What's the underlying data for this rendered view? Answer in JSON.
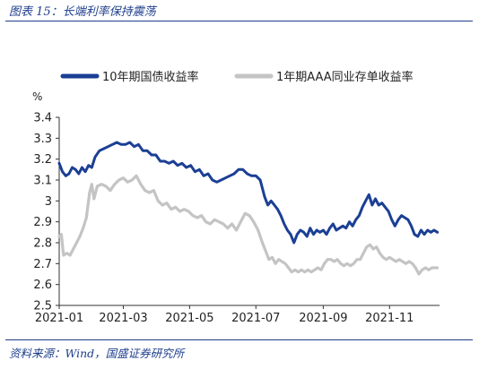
{
  "figure": {
    "title": "图表 15：长端利率保持震荡",
    "source": "资料来源：Wind，国盛证券研究所"
  },
  "chart_data": {
    "type": "line",
    "ylabel": "%",
    "ylim": [
      2.5,
      3.4
    ],
    "yticks": [
      "2.5",
      "2.6",
      "2.7",
      "2.8",
      "2.9",
      "3",
      "3.1",
      "3.2",
      "3.3",
      "3.4"
    ],
    "xlim": [
      "2021-01-01",
      "2021-12-17"
    ],
    "xticks": [
      "2021-01",
      "2021-03",
      "2021-05",
      "2021-07",
      "2021-09",
      "2021-11"
    ],
    "grid": false,
    "legend_position": "top",
    "series": [
      {
        "name": "10年期国债收益率",
        "color": "#1b3f94",
        "points": [
          [
            "2021-01-01",
            3.18
          ],
          [
            "2021-01-04",
            3.14
          ],
          [
            "2021-01-07",
            3.12
          ],
          [
            "2021-01-10",
            3.13
          ],
          [
            "2021-01-13",
            3.16
          ],
          [
            "2021-01-16",
            3.15
          ],
          [
            "2021-01-19",
            3.13
          ],
          [
            "2021-01-22",
            3.16
          ],
          [
            "2021-01-25",
            3.14
          ],
          [
            "2021-01-28",
            3.17
          ],
          [
            "2021-01-31",
            3.16
          ],
          [
            "2021-02-03",
            3.21
          ],
          [
            "2021-02-07",
            3.24
          ],
          [
            "2021-02-11",
            3.25
          ],
          [
            "2021-02-15",
            3.26
          ],
          [
            "2021-02-19",
            3.27
          ],
          [
            "2021-02-23",
            3.28
          ],
          [
            "2021-02-27",
            3.27
          ],
          [
            "2021-03-03",
            3.27
          ],
          [
            "2021-03-07",
            3.28
          ],
          [
            "2021-03-11",
            3.26
          ],
          [
            "2021-03-15",
            3.27
          ],
          [
            "2021-03-19",
            3.24
          ],
          [
            "2021-03-23",
            3.24
          ],
          [
            "2021-03-27",
            3.22
          ],
          [
            "2021-03-31",
            3.22
          ],
          [
            "2021-04-04",
            3.19
          ],
          [
            "2021-04-08",
            3.19
          ],
          [
            "2021-04-12",
            3.18
          ],
          [
            "2021-04-16",
            3.19
          ],
          [
            "2021-04-20",
            3.17
          ],
          [
            "2021-04-24",
            3.18
          ],
          [
            "2021-04-28",
            3.16
          ],
          [
            "2021-05-02",
            3.17
          ],
          [
            "2021-05-06",
            3.14
          ],
          [
            "2021-05-10",
            3.15
          ],
          [
            "2021-05-14",
            3.12
          ],
          [
            "2021-05-18",
            3.13
          ],
          [
            "2021-05-22",
            3.1
          ],
          [
            "2021-05-26",
            3.09
          ],
          [
            "2021-05-30",
            3.1
          ],
          [
            "2021-06-03",
            3.11
          ],
          [
            "2021-06-07",
            3.12
          ],
          [
            "2021-06-11",
            3.13
          ],
          [
            "2021-06-15",
            3.15
          ],
          [
            "2021-06-19",
            3.15
          ],
          [
            "2021-06-23",
            3.13
          ],
          [
            "2021-06-27",
            3.12
          ],
          [
            "2021-07-01",
            3.12
          ],
          [
            "2021-07-05",
            3.1
          ],
          [
            "2021-07-09",
            3.02
          ],
          [
            "2021-07-12",
            2.98
          ],
          [
            "2021-07-15",
            3.0
          ],
          [
            "2021-07-18",
            2.98
          ],
          [
            "2021-07-21",
            2.96
          ],
          [
            "2021-07-24",
            2.93
          ],
          [
            "2021-07-27",
            2.89
          ],
          [
            "2021-07-30",
            2.86
          ],
          [
            "2021-08-02",
            2.84
          ],
          [
            "2021-08-05",
            2.8
          ],
          [
            "2021-08-08",
            2.84
          ],
          [
            "2021-08-11",
            2.86
          ],
          [
            "2021-08-14",
            2.85
          ],
          [
            "2021-08-17",
            2.83
          ],
          [
            "2021-08-20",
            2.87
          ],
          [
            "2021-08-23",
            2.84
          ],
          [
            "2021-08-26",
            2.86
          ],
          [
            "2021-08-29",
            2.85
          ],
          [
            "2021-09-01",
            2.86
          ],
          [
            "2021-09-04",
            2.84
          ],
          [
            "2021-09-07",
            2.87
          ],
          [
            "2021-09-10",
            2.89
          ],
          [
            "2021-09-13",
            2.86
          ],
          [
            "2021-09-16",
            2.87
          ],
          [
            "2021-09-19",
            2.88
          ],
          [
            "2021-09-22",
            2.87
          ],
          [
            "2021-09-25",
            2.9
          ],
          [
            "2021-09-28",
            2.88
          ],
          [
            "2021-10-01",
            2.91
          ],
          [
            "2021-10-04",
            2.93
          ],
          [
            "2021-10-07",
            2.97
          ],
          [
            "2021-10-10",
            3.0
          ],
          [
            "2021-10-13",
            3.03
          ],
          [
            "2021-10-16",
            2.98
          ],
          [
            "2021-10-19",
            3.01
          ],
          [
            "2021-10-22",
            2.98
          ],
          [
            "2021-10-25",
            2.99
          ],
          [
            "2021-10-28",
            2.97
          ],
          [
            "2021-10-31",
            2.95
          ],
          [
            "2021-11-03",
            2.91
          ],
          [
            "2021-11-06",
            2.88
          ],
          [
            "2021-11-09",
            2.91
          ],
          [
            "2021-11-12",
            2.93
          ],
          [
            "2021-11-15",
            2.92
          ],
          [
            "2021-11-18",
            2.91
          ],
          [
            "2021-11-21",
            2.88
          ],
          [
            "2021-11-24",
            2.84
          ],
          [
            "2021-11-27",
            2.83
          ],
          [
            "2021-11-30",
            2.86
          ],
          [
            "2021-12-03",
            2.84
          ],
          [
            "2021-12-06",
            2.86
          ],
          [
            "2021-12-09",
            2.85
          ],
          [
            "2021-12-12",
            2.86
          ],
          [
            "2021-12-15",
            2.85
          ]
        ]
      },
      {
        "name": "1年期AAA同业存单收益率",
        "color": "#c4c4c4",
        "points": [
          [
            "2021-01-01",
            2.83
          ],
          [
            "2021-01-03",
            2.84
          ],
          [
            "2021-01-05",
            2.74
          ],
          [
            "2021-01-08",
            2.75
          ],
          [
            "2021-01-11",
            2.74
          ],
          [
            "2021-01-14",
            2.77
          ],
          [
            "2021-01-17",
            2.8
          ],
          [
            "2021-01-20",
            2.83
          ],
          [
            "2021-01-23",
            2.87
          ],
          [
            "2021-01-26",
            2.92
          ],
          [
            "2021-01-29",
            3.04
          ],
          [
            "2021-01-31",
            3.08
          ],
          [
            "2021-02-02",
            3.01
          ],
          [
            "2021-02-05",
            3.07
          ],
          [
            "2021-02-09",
            3.08
          ],
          [
            "2021-02-13",
            3.07
          ],
          [
            "2021-02-17",
            3.05
          ],
          [
            "2021-02-21",
            3.08
          ],
          [
            "2021-02-25",
            3.1
          ],
          [
            "2021-03-01",
            3.11
          ],
          [
            "2021-03-05",
            3.09
          ],
          [
            "2021-03-09",
            3.1
          ],
          [
            "2021-03-13",
            3.12
          ],
          [
            "2021-03-17",
            3.08
          ],
          [
            "2021-03-21",
            3.05
          ],
          [
            "2021-03-25",
            3.04
          ],
          [
            "2021-03-29",
            3.05
          ],
          [
            "2021-04-02",
            3.0
          ],
          [
            "2021-04-06",
            2.98
          ],
          [
            "2021-04-10",
            2.99
          ],
          [
            "2021-04-14",
            2.96
          ],
          [
            "2021-04-18",
            2.97
          ],
          [
            "2021-04-22",
            2.95
          ],
          [
            "2021-04-26",
            2.96
          ],
          [
            "2021-04-30",
            2.95
          ],
          [
            "2021-05-04",
            2.93
          ],
          [
            "2021-05-08",
            2.92
          ],
          [
            "2021-05-12",
            2.93
          ],
          [
            "2021-05-16",
            2.9
          ],
          [
            "2021-05-20",
            2.89
          ],
          [
            "2021-05-24",
            2.91
          ],
          [
            "2021-05-28",
            2.9
          ],
          [
            "2021-06-01",
            2.89
          ],
          [
            "2021-06-05",
            2.87
          ],
          [
            "2021-06-09",
            2.89
          ],
          [
            "2021-06-13",
            2.86
          ],
          [
            "2021-06-17",
            2.9
          ],
          [
            "2021-06-21",
            2.94
          ],
          [
            "2021-06-25",
            2.93
          ],
          [
            "2021-06-29",
            2.9
          ],
          [
            "2021-07-03",
            2.86
          ],
          [
            "2021-07-07",
            2.8
          ],
          [
            "2021-07-10",
            2.76
          ],
          [
            "2021-07-13",
            2.72
          ],
          [
            "2021-07-16",
            2.73
          ],
          [
            "2021-07-19",
            2.7
          ],
          [
            "2021-07-22",
            2.72
          ],
          [
            "2021-07-25",
            2.71
          ],
          [
            "2021-07-28",
            2.7
          ],
          [
            "2021-07-31",
            2.68
          ],
          [
            "2021-08-03",
            2.66
          ],
          [
            "2021-08-06",
            2.67
          ],
          [
            "2021-08-09",
            2.66
          ],
          [
            "2021-08-12",
            2.67
          ],
          [
            "2021-08-15",
            2.66
          ],
          [
            "2021-08-18",
            2.67
          ],
          [
            "2021-08-21",
            2.66
          ],
          [
            "2021-08-24",
            2.67
          ],
          [
            "2021-08-27",
            2.68
          ],
          [
            "2021-08-30",
            2.67
          ],
          [
            "2021-09-02",
            2.7
          ],
          [
            "2021-09-05",
            2.72
          ],
          [
            "2021-09-08",
            2.72
          ],
          [
            "2021-09-11",
            2.71
          ],
          [
            "2021-09-14",
            2.72
          ],
          [
            "2021-09-17",
            2.7
          ],
          [
            "2021-09-20",
            2.69
          ],
          [
            "2021-09-23",
            2.7
          ],
          [
            "2021-09-26",
            2.69
          ],
          [
            "2021-09-29",
            2.7
          ],
          [
            "2021-10-02",
            2.72
          ],
          [
            "2021-10-05",
            2.72
          ],
          [
            "2021-10-08",
            2.75
          ],
          [
            "2021-10-11",
            2.78
          ],
          [
            "2021-10-14",
            2.79
          ],
          [
            "2021-10-17",
            2.77
          ],
          [
            "2021-10-20",
            2.78
          ],
          [
            "2021-10-23",
            2.75
          ],
          [
            "2021-10-26",
            2.73
          ],
          [
            "2021-10-29",
            2.72
          ],
          [
            "2021-11-01",
            2.73
          ],
          [
            "2021-11-04",
            2.72
          ],
          [
            "2021-11-07",
            2.71
          ],
          [
            "2021-11-10",
            2.72
          ],
          [
            "2021-11-13",
            2.71
          ],
          [
            "2021-11-16",
            2.7
          ],
          [
            "2021-11-19",
            2.71
          ],
          [
            "2021-11-22",
            2.7
          ],
          [
            "2021-11-25",
            2.68
          ],
          [
            "2021-11-28",
            2.65
          ],
          [
            "2021-12-01",
            2.67
          ],
          [
            "2021-12-04",
            2.68
          ],
          [
            "2021-12-07",
            2.67
          ],
          [
            "2021-12-10",
            2.68
          ],
          [
            "2021-12-15",
            2.68
          ]
        ]
      }
    ]
  }
}
